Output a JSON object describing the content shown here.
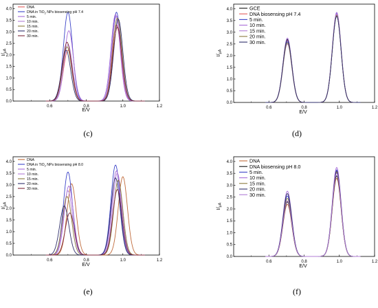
{
  "chart_data": [
    {
      "panel_label": "(c)",
      "type": "line",
      "xlabel": "E/V",
      "ylabel": "I/µA",
      "xlim": [
        0.4,
        1.2
      ],
      "ylim": [
        0,
        4.2
      ],
      "xticks": [
        "0.6",
        "0.8",
        "1.0",
        "1.2"
      ],
      "yticks": [
        "0.0",
        "0.5",
        "1.0",
        "1.5",
        "2.0",
        "2.5",
        "3.0",
        "3.5",
        "4.0"
      ],
      "legend_position": "top-left",
      "legend_size": "small",
      "series": [
        {
          "name": "DNA",
          "color": "#e35a5a",
          "peaks": [
            [
              0.7,
              2.2
            ],
            [
              0.965,
              3.3
            ]
          ]
        },
        {
          "name": "DNA in TiO2 NPs biosensing pH 7.4",
          "name_parts": [
            "DNA in TiO",
            "2",
            " NPs biosensing pH 7.4"
          ],
          "color": "#3b43c8",
          "peaks": [
            [
              0.7,
              3.85
            ],
            [
              0.965,
              3.85
            ]
          ]
        },
        {
          "name": "5 min.",
          "color": "#a76bd8",
          "peaks": [
            [
              0.705,
              3.05
            ],
            [
              0.96,
              3.75
            ]
          ]
        },
        {
          "name": "10 min.",
          "color": "#b07cd6",
          "peaks": [
            [
              0.7,
              2.45
            ],
            [
              0.965,
              3.7
            ]
          ]
        },
        {
          "name": "15 min.",
          "color": "#8a7a3c",
          "peaks": [
            [
              0.695,
              2.35
            ],
            [
              0.97,
              3.6
            ]
          ]
        },
        {
          "name": "20 min.",
          "color": "#2f2f6b",
          "peaks": [
            [
              0.69,
              2.2
            ],
            [
              0.975,
              3.55
            ]
          ]
        },
        {
          "name": "30 min.",
          "color": "#7d2638",
          "peaks": [
            [
              0.695,
              2.55
            ],
            [
              0.97,
              3.2
            ]
          ]
        }
      ]
    },
    {
      "panel_label": "(d)",
      "type": "line",
      "xlabel": "E/V",
      "ylabel": "I/µA",
      "xlim": [
        0.4,
        1.2
      ],
      "ylim": [
        0,
        4.2
      ],
      "xticks": [
        "0.6",
        "0.8",
        "1.0",
        "1.2"
      ],
      "yticks": [
        "0.0",
        "0.5",
        "1.0",
        "1.5",
        "2.0",
        "2.5",
        "3.0",
        "3.5",
        "4.0"
      ],
      "legend_position": "top-left",
      "legend_size": "large",
      "series": [
        {
          "name": "GCE",
          "color": "#111111",
          "peaks": [
            [
              0.705,
              2.7
            ],
            [
              0.985,
              3.7
            ]
          ]
        },
        {
          "name": "DNA biosensing pH 7.4",
          "color": "#e35a5a",
          "peaks": [
            [
              0.705,
              2.65
            ],
            [
              0.985,
              3.75
            ]
          ]
        },
        {
          "name": "5 min.",
          "color": "#3b43c8",
          "peaks": [
            [
              0.705,
              2.6
            ],
            [
              0.985,
              3.8
            ]
          ]
        },
        {
          "name": "10 min.",
          "color": "#a76bd8",
          "peaks": [
            [
              0.705,
              2.75
            ],
            [
              0.985,
              3.85
            ]
          ]
        },
        {
          "name": "15 min.",
          "color": "#b07cd6",
          "peaks": [
            [
              0.705,
              2.5
            ],
            [
              0.985,
              3.78
            ]
          ]
        },
        {
          "name": "20 min.",
          "color": "#8a7a3c",
          "peaks": [
            [
              0.705,
              2.55
            ],
            [
              0.985,
              3.72
            ]
          ]
        },
        {
          "name": "30 min.",
          "color": "#2f2f6b",
          "peaks": [
            [
              0.705,
              2.68
            ],
            [
              0.985,
              3.68
            ]
          ]
        }
      ]
    },
    {
      "panel_label": "(e)",
      "type": "line",
      "xlabel": "E/V",
      "ylabel": "I/µA",
      "xlim": [
        0.4,
        1.2
      ],
      "ylim": [
        0,
        4.2
      ],
      "xticks": [
        "0.6",
        "0.8",
        "1.0",
        "1.2"
      ],
      "yticks": [
        "0.0",
        "0.5",
        "1.0",
        "1.5",
        "2.0",
        "2.5",
        "3.0",
        "3.5",
        "4.0"
      ],
      "legend_position": "top-left",
      "legend_size": "small",
      "series": [
        {
          "name": "DNA",
          "color": "#c06a3a",
          "peaks": [
            [
              0.72,
              3.05
            ],
            [
              1.0,
              3.35
            ]
          ]
        },
        {
          "name": "DNA in TiO2 NPs biosensing pH 8.0",
          "name_parts": [
            "DNA in TiO",
            "2",
            " NPs biosensing pH 8.0"
          ],
          "color": "#3b43c8",
          "peaks": [
            [
              0.7,
              3.55
            ],
            [
              0.96,
              3.85
            ]
          ]
        },
        {
          "name": "5 min.",
          "color": "#a76bd8",
          "peaks": [
            [
              0.705,
              2.95
            ],
            [
              0.965,
              3.6
            ]
          ]
        },
        {
          "name": "10 min.",
          "color": "#b07cd6",
          "peaks": [
            [
              0.7,
              2.75
            ],
            [
              0.97,
              3.5
            ]
          ]
        },
        {
          "name": "15 min.",
          "color": "#8a7a3c",
          "peaks": [
            [
              0.695,
              2.5
            ],
            [
              0.975,
              3.2
            ]
          ]
        },
        {
          "name": "20 min.",
          "color": "#2f2f6b",
          "peaks": [
            [
              0.68,
              2.1
            ],
            [
              0.96,
              3.3
            ]
          ]
        },
        {
          "name": "30 min.",
          "color": "#7d2638",
          "peaks": [
            [
              0.71,
              1.8
            ],
            [
              0.97,
              2.8
            ]
          ]
        }
      ]
    },
    {
      "panel_label": "(f)",
      "type": "line",
      "xlabel": "E/V",
      "ylabel": "I/µA",
      "xlim": [
        0.4,
        1.2
      ],
      "ylim": [
        0,
        4.2
      ],
      "xticks": [
        "0.6",
        "0.8",
        "1.0",
        "1.2"
      ],
      "yticks": [
        "0.0",
        "0.5",
        "1.0",
        "1.5",
        "2.0",
        "2.5",
        "3.0",
        "3.5",
        "4.0"
      ],
      "legend_position": "top-left",
      "legend_size": "large",
      "series": [
        {
          "name": "DNA",
          "color": "#c06a3a",
          "peaks": [
            [
              0.705,
              2.2
            ],
            [
              0.985,
              3.3
            ]
          ]
        },
        {
          "name": "DNA biosensing pH 8.0",
          "color": "#111111",
          "peaks": [
            [
              0.705,
              2.3
            ],
            [
              0.985,
              3.4
            ]
          ]
        },
        {
          "name": "5 min.",
          "color": "#3b43c8",
          "peaks": [
            [
              0.705,
              2.55
            ],
            [
              0.985,
              3.65
            ]
          ]
        },
        {
          "name": "10 min.",
          "color": "#a76bd8",
          "peaks": [
            [
              0.705,
              2.75
            ],
            [
              0.985,
              3.75
            ]
          ]
        },
        {
          "name": "15 min.",
          "color": "#8a7a3c",
          "peaks": [
            [
              0.705,
              2.45
            ],
            [
              0.985,
              3.55
            ]
          ]
        },
        {
          "name": "20 min.",
          "color": "#2f2f6b",
          "peaks": [
            [
              0.705,
              2.65
            ],
            [
              0.985,
              3.6
            ]
          ]
        },
        {
          "name": "30 min.",
          "color": "#b07cd6",
          "peaks": [
            [
              0.705,
              2.35
            ],
            [
              0.985,
              3.5
            ]
          ]
        }
      ]
    }
  ]
}
